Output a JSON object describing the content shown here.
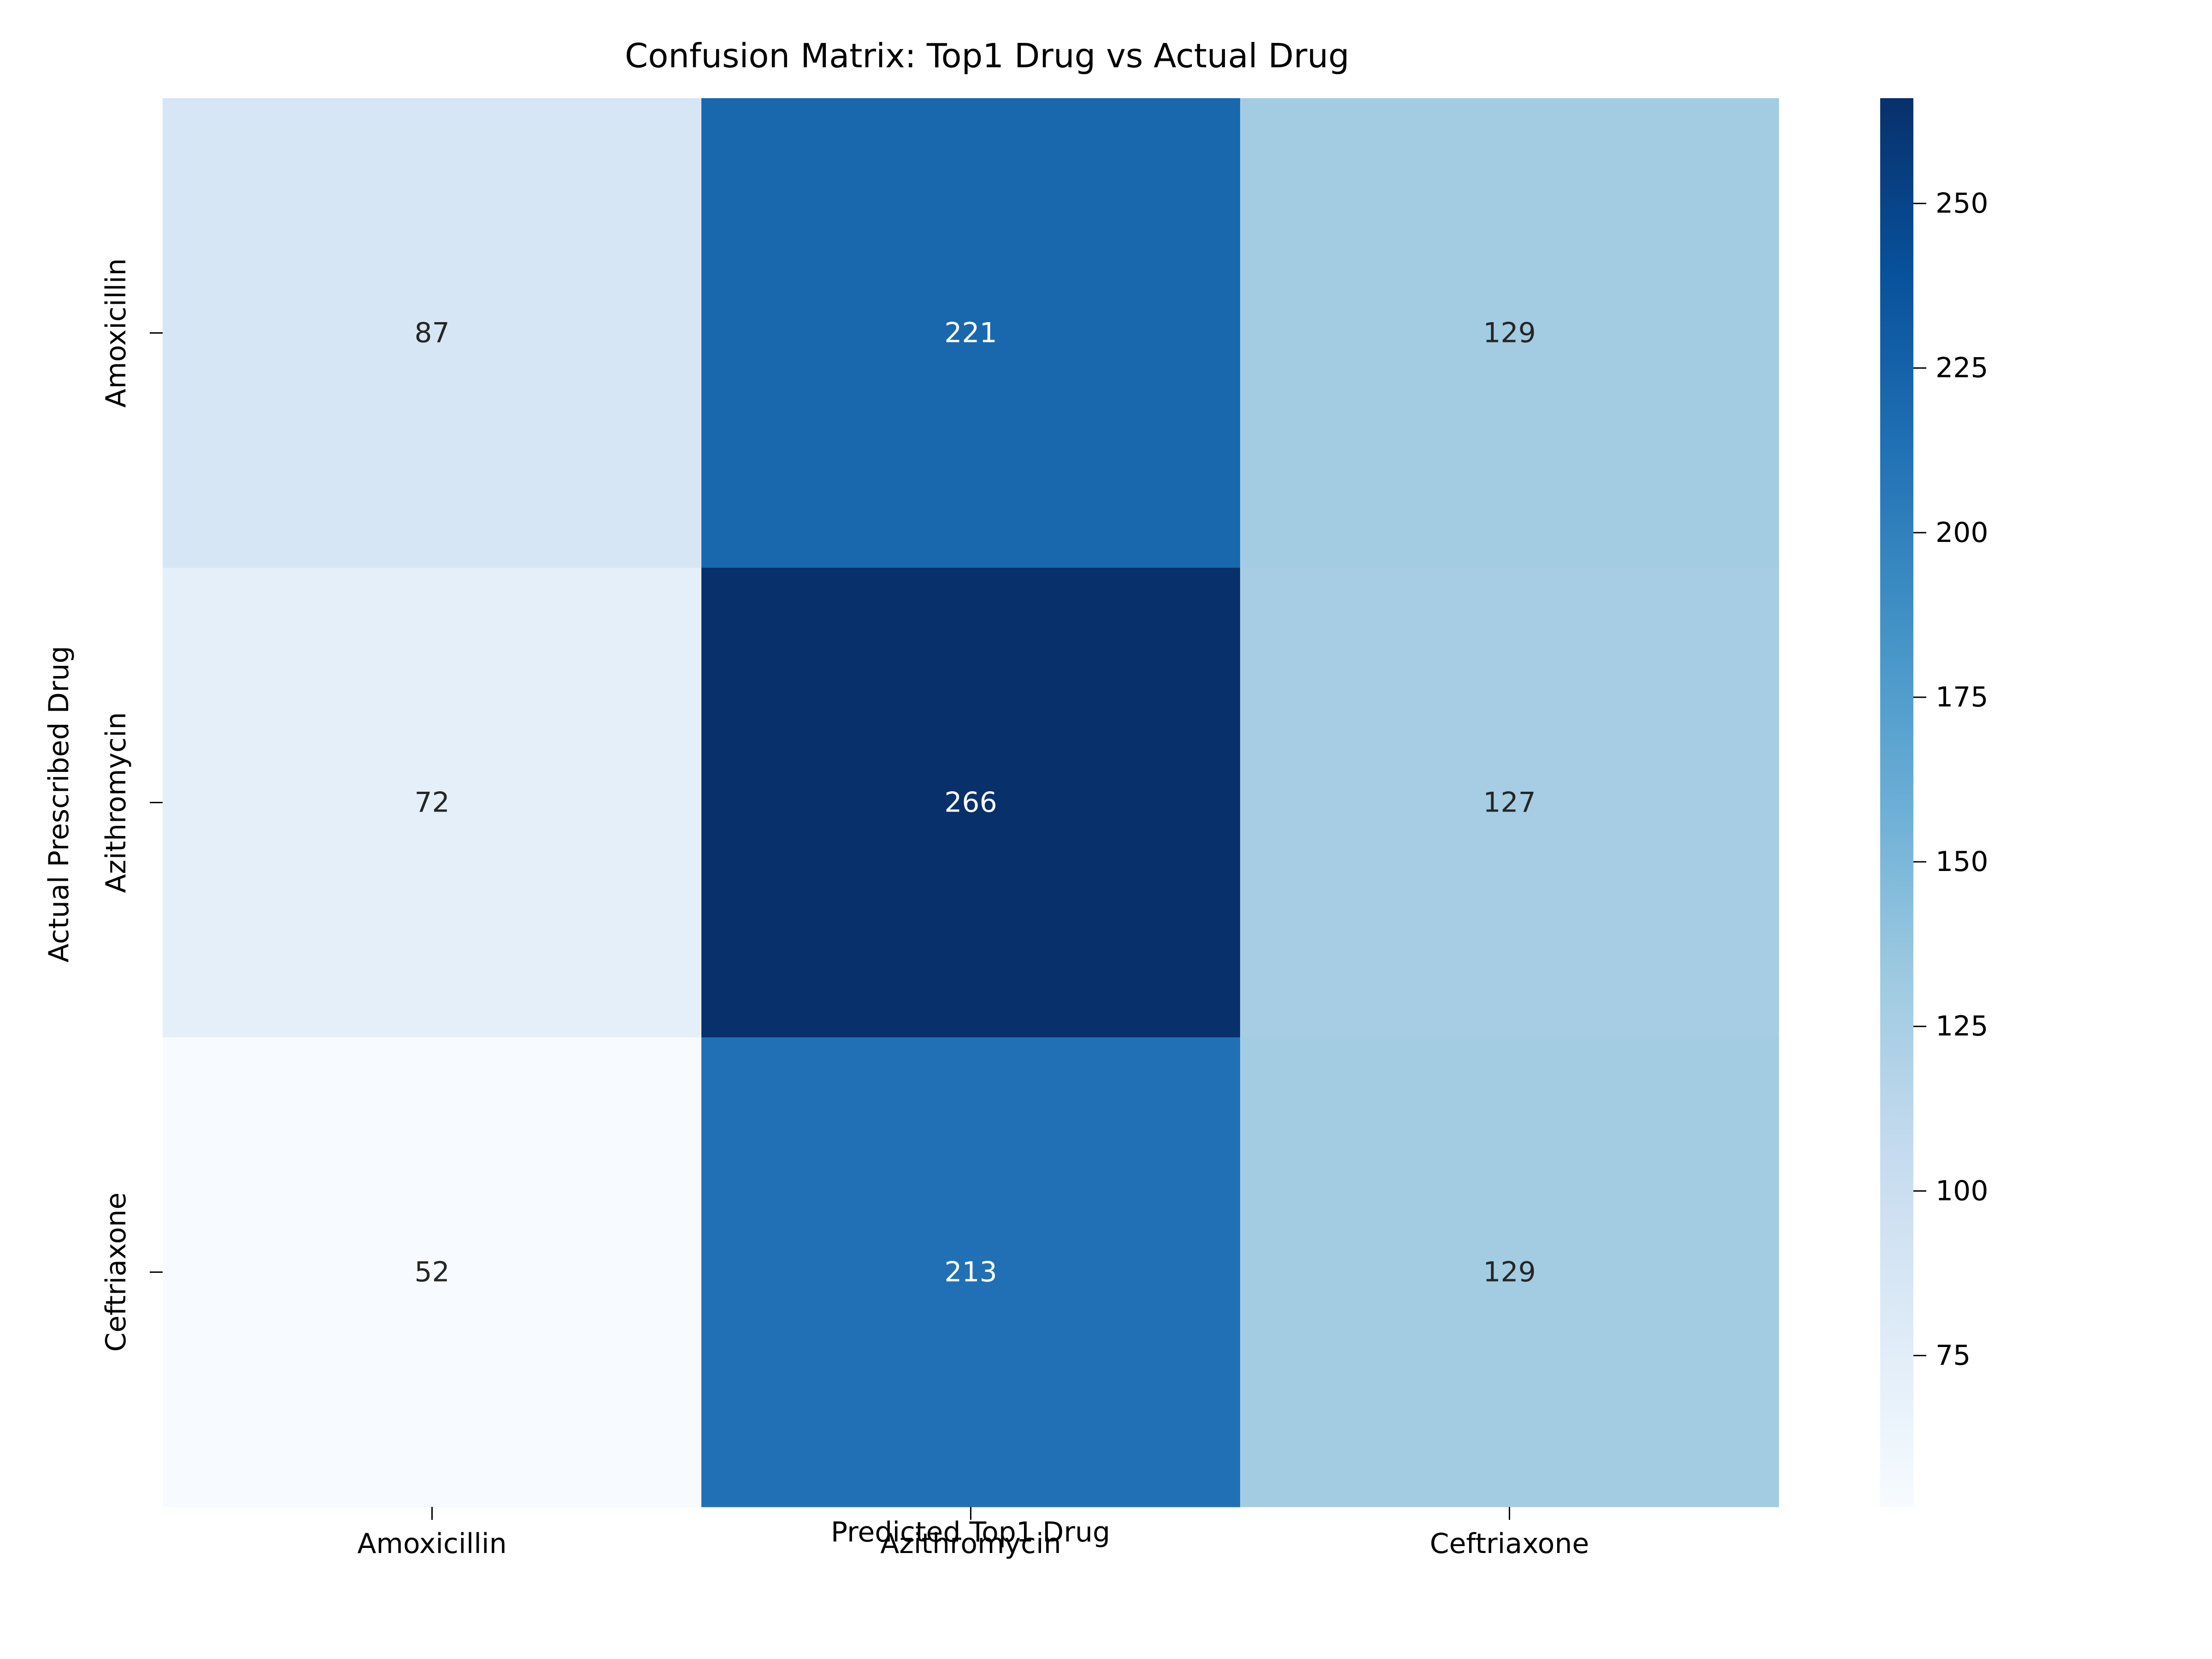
{
  "chart_data": {
    "type": "heatmap",
    "title": "Confusion Matrix: Top1 Drug vs Actual Drug",
    "xlabel": "Predicted Top1 Drug",
    "ylabel": "Actual Prescribed Drug",
    "x_categories": [
      "Amoxicillin",
      "Azithromycin",
      "Ceftriaxone"
    ],
    "y_categories": [
      "Amoxicillin",
      "Azithromycin",
      "Ceftriaxone"
    ],
    "values": [
      [
        87,
        221,
        129
      ],
      [
        72,
        266,
        127
      ],
      [
        52,
        213,
        129
      ]
    ],
    "colormap": "Blues",
    "color_range": [
      52,
      266
    ],
    "colorbar_ticks": [
      75,
      100,
      125,
      150,
      175,
      200,
      225,
      250
    ],
    "colors": {
      "light_end": "#f7fbff",
      "dark_end": "#08306b",
      "text_light_cell": "#262626",
      "text_dark_cell": "#ffffff"
    }
  }
}
